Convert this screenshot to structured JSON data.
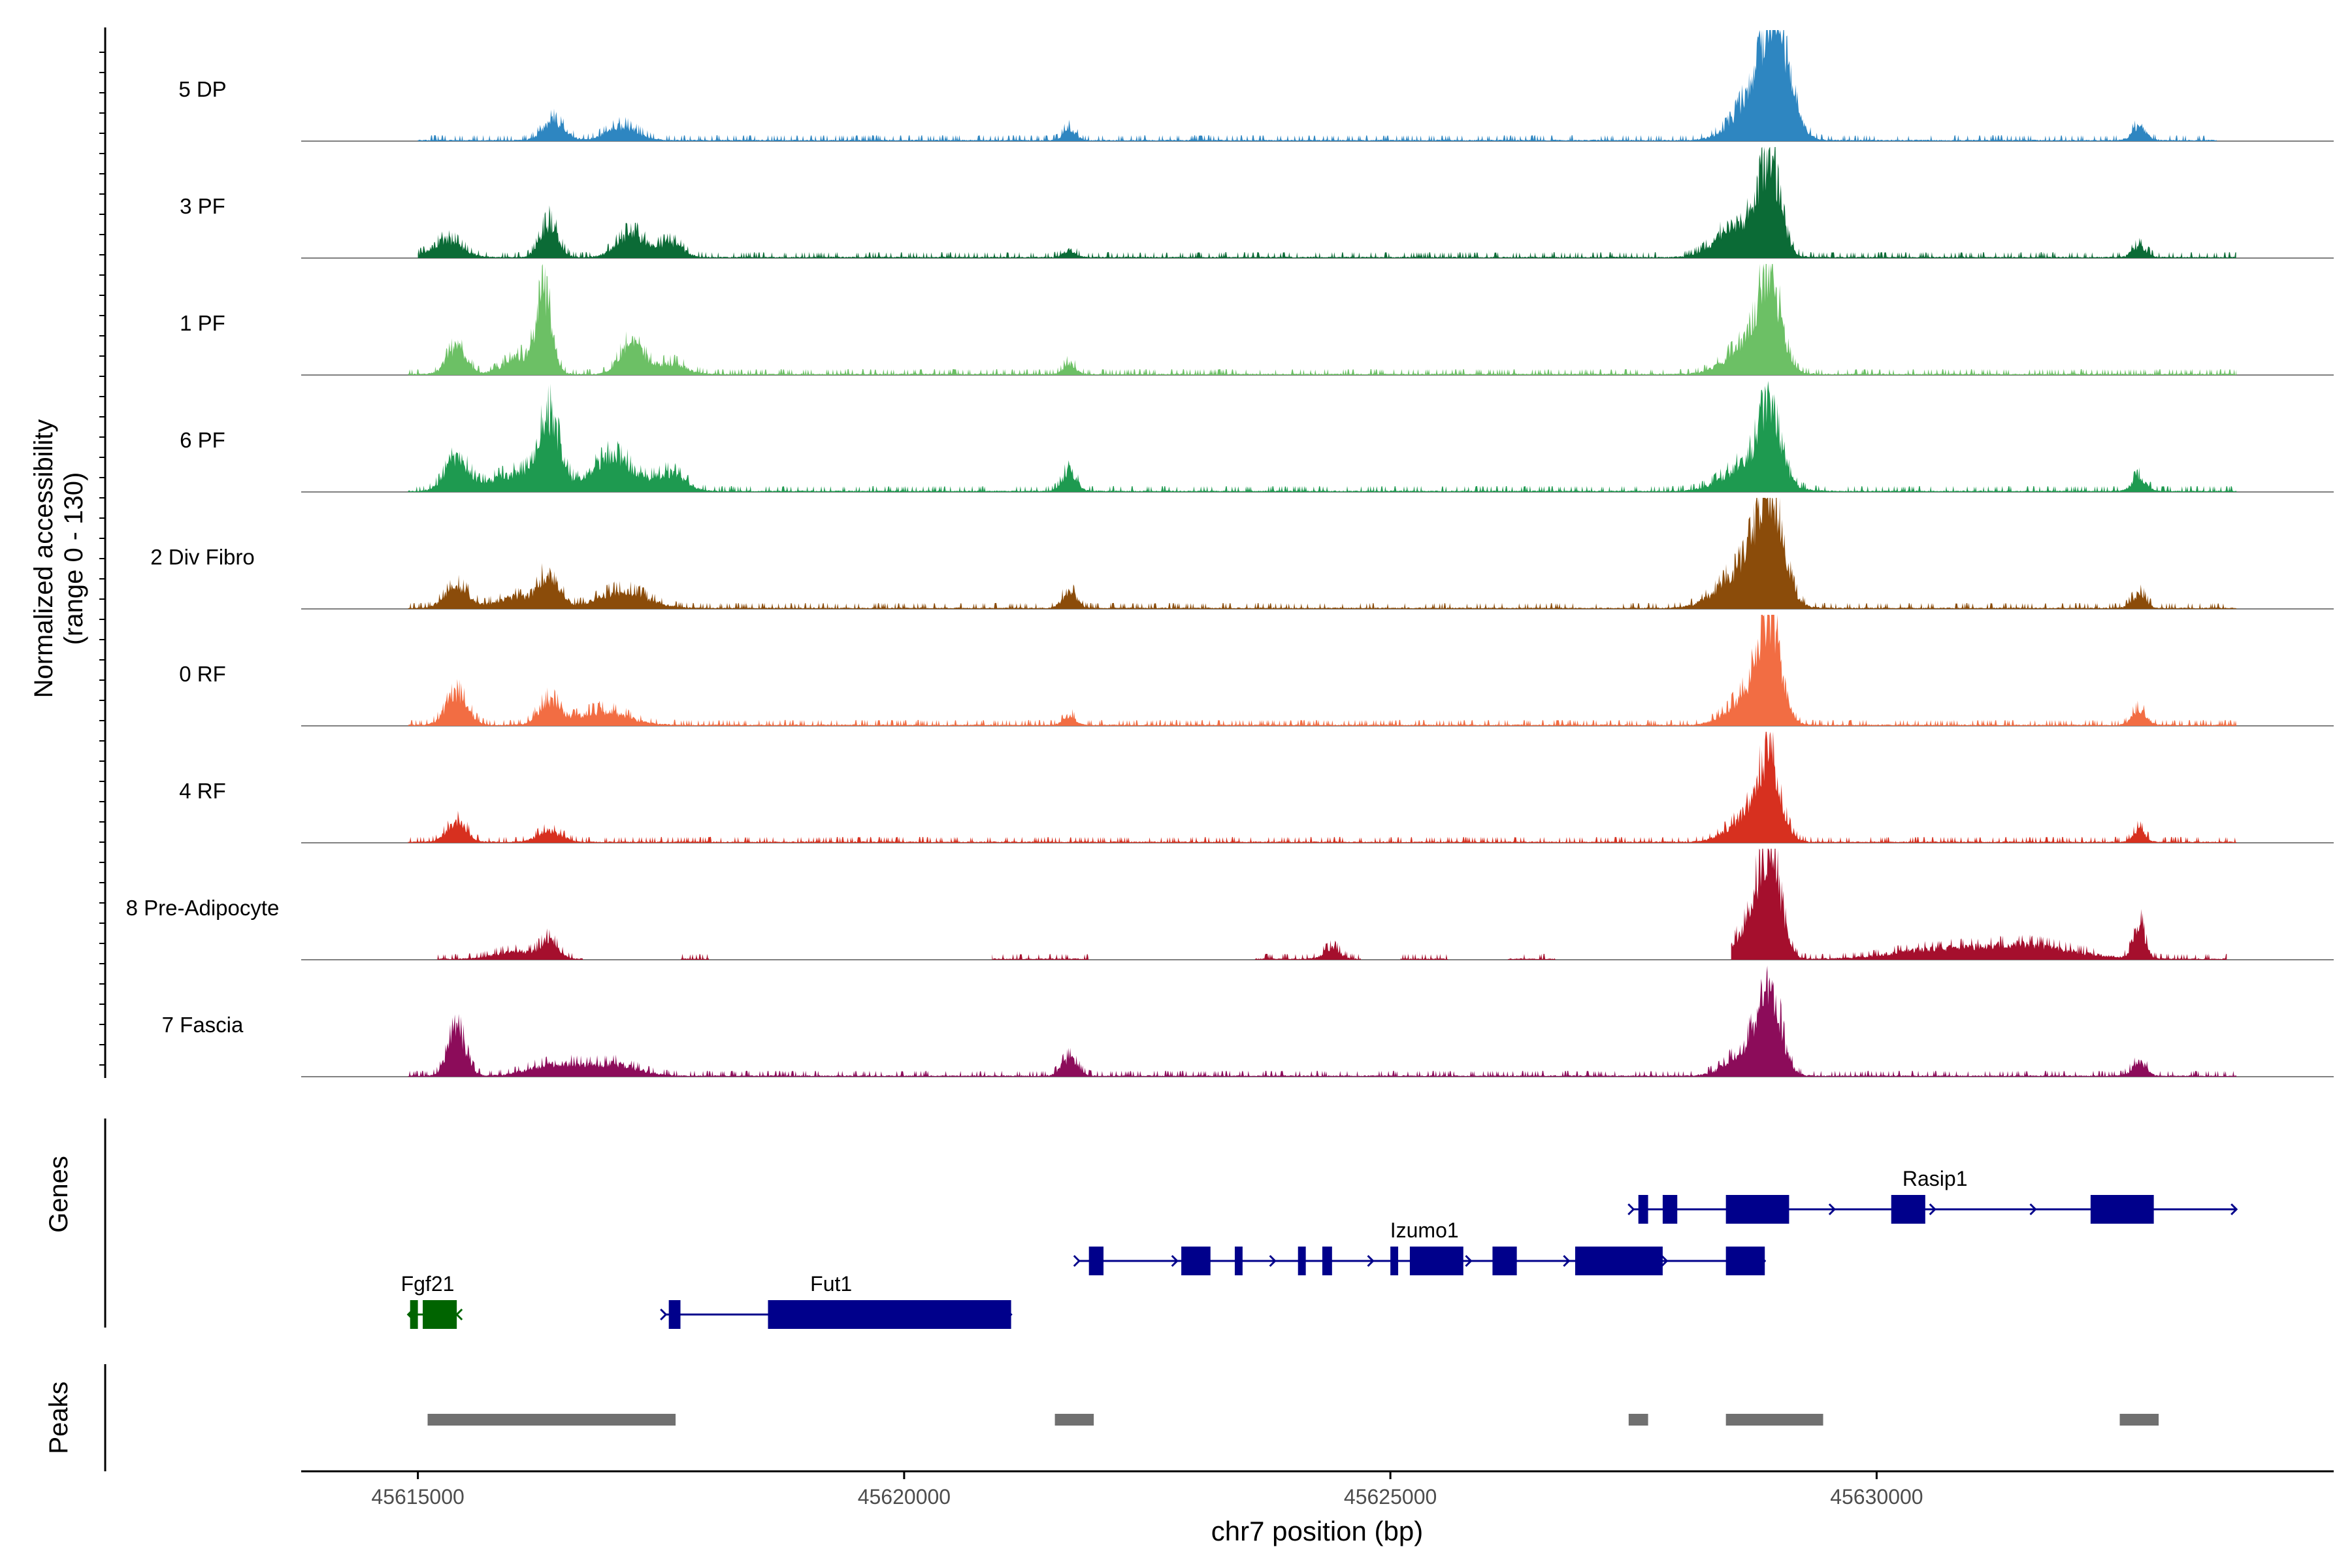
{
  "chart_data": {
    "type": "area",
    "title": "",
    "ylabel_line1": "Normalized accessibility",
    "ylabel_line2": "(range 0 - 130)",
    "yrange": [
      0,
      130
    ],
    "xlabel": "chr7 position (bp)",
    "xlim": [
      45613800,
      45634700
    ],
    "x_ticks": [
      45615000,
      45620000,
      45625000,
      45630000
    ],
    "x_tick_labels": [
      "45615000",
      "45620000",
      "45625000",
      "45630000"
    ],
    "coverage_tracks": [
      {
        "name": "5 DP",
        "color": "#2E86C1",
        "start": 45615000,
        "end": 45633500,
        "peaks": [
          [
            45616400,
            25,
            110
          ],
          [
            45617100,
            18,
            160
          ],
          [
            45621700,
            16,
            60
          ],
          [
            45628950,
            128,
            150
          ],
          [
            45628750,
            45,
            220
          ],
          [
            45632700,
            18,
            70
          ]
        ],
        "gaps": []
      },
      {
        "name": "3 PF",
        "color": "#0B6B36",
        "start": 45615000,
        "end": 45633700,
        "peaks": [
          [
            45615300,
            22,
            150
          ],
          [
            45616350,
            45,
            90
          ],
          [
            45617200,
            30,
            150
          ],
          [
            45617600,
            18,
            120
          ],
          [
            45621700,
            9,
            60
          ],
          [
            45628900,
            105,
            110
          ],
          [
            45628600,
            45,
            220
          ],
          [
            45632700,
            14,
            70
          ]
        ],
        "gaps": []
      },
      {
        "name": "1 PF",
        "color": "#6CC065",
        "start": 45614900,
        "end": 45633700,
        "peaks": [
          [
            45615400,
            35,
            100
          ],
          [
            45616300,
            95,
            80
          ],
          [
            45616050,
            22,
            160
          ],
          [
            45617200,
            40,
            120
          ],
          [
            45617600,
            14,
            150
          ],
          [
            45621700,
            14,
            60
          ],
          [
            45628900,
            105,
            110
          ],
          [
            45628700,
            40,
            220
          ]
        ],
        "gaps": []
      },
      {
        "name": "6 PF",
        "color": "#1E9A50",
        "start": 45614900,
        "end": 45633700,
        "peaks": [
          [
            45615400,
            40,
            120
          ],
          [
            45616350,
            90,
            110
          ],
          [
            45616000,
            22,
            250
          ],
          [
            45617000,
            45,
            220
          ],
          [
            45617600,
            22,
            150
          ],
          [
            45621700,
            26,
            70
          ],
          [
            45628900,
            80,
            110
          ],
          [
            45628700,
            35,
            250
          ],
          [
            45632700,
            18,
            70
          ]
        ],
        "gaps": []
      },
      {
        "name": "2 Div Fibro",
        "color": "#8B4C0A",
        "start": 45614900,
        "end": 45633700,
        "peaks": [
          [
            45615400,
            28,
            120
          ],
          [
            45616350,
            40,
            110
          ],
          [
            45616000,
            14,
            200
          ],
          [
            45617100,
            22,
            250
          ],
          [
            45621700,
            22,
            70
          ],
          [
            45628900,
            130,
            130
          ],
          [
            45628650,
            50,
            250
          ],
          [
            45632700,
            18,
            70
          ]
        ],
        "gaps": []
      },
      {
        "name": "0 RF",
        "color": "#F26D43",
        "start": 45614900,
        "end": 45633700,
        "peaks": [
          [
            45615400,
            40,
            110
          ],
          [
            45616350,
            30,
            110
          ],
          [
            45616900,
            18,
            250
          ],
          [
            45621700,
            12,
            60
          ],
          [
            45628900,
            118,
            110
          ],
          [
            45628700,
            40,
            200
          ],
          [
            45632700,
            20,
            70
          ]
        ],
        "gaps": []
      },
      {
        "name": "4 RF",
        "color": "#D7301F",
        "start": 45614900,
        "end": 45633700,
        "peaks": [
          [
            45615400,
            26,
            100
          ],
          [
            45616350,
            14,
            120
          ],
          [
            45628900,
            90,
            110
          ],
          [
            45628700,
            35,
            200
          ],
          [
            45632700,
            16,
            60
          ]
        ],
        "gaps": []
      },
      {
        "name": "8 Pre-Adipocyte",
        "color": "#A50F2D",
        "start": 45615200,
        "end": 45633600,
        "peaks": [
          [
            45616350,
            22,
            90
          ],
          [
            45616000,
            10,
            200
          ],
          [
            45628900,
            128,
            110
          ],
          [
            45628700,
            40,
            150
          ],
          [
            45632700,
            45,
            60
          ],
          [
            45631500,
            18,
            500
          ],
          [
            45630500,
            10,
            400
          ],
          [
            45624400,
            14,
            80
          ],
          [
            45622200,
            8,
            100
          ]
        ],
        "gaps": [
          [
            45616700,
            45617700
          ],
          [
            45618000,
            45620900
          ],
          [
            45621900,
            45623600
          ],
          [
            45624700,
            45625100
          ],
          [
            45625600,
            45626200
          ],
          [
            45626700,
            45628500
          ]
        ]
      },
      {
        "name": "7 Fascia",
        "color": "#8C0C5A",
        "start": 45614900,
        "end": 45633700,
        "peaks": [
          [
            45615400,
            58,
            90
          ],
          [
            45616400,
            15,
            250
          ],
          [
            45617000,
            15,
            250
          ],
          [
            45621700,
            22,
            80
          ],
          [
            45628900,
            100,
            110
          ],
          [
            45628700,
            35,
            200
          ],
          [
            45632700,
            18,
            70
          ]
        ],
        "gaps": []
      }
    ],
    "genes_track": {
      "label": "Genes",
      "genes": [
        {
          "name": "Fgf21",
          "color": "#006400",
          "strand": "-",
          "start": 45614900,
          "end": 45615400,
          "exons": [
            [
              45614920,
              45615000
            ],
            [
              45615050,
              45615400
            ]
          ]
        },
        {
          "name": "Fut1",
          "color": "#00008B",
          "strand": "+",
          "start": 45617550,
          "end": 45621100,
          "exons": [
            [
              45617580,
              45617700
            ],
            [
              45618600,
              45621100
            ]
          ]
        },
        {
          "name": "Izumo1",
          "color": "#00008B",
          "strand": "+",
          "start": 45621800,
          "end": 45628850,
          "exons": [
            [
              45621900,
              45622050
            ],
            [
              45622850,
              45623150
            ],
            [
              45623400,
              45623480
            ],
            [
              45624050,
              45624130
            ],
            [
              45624300,
              45624400
            ],
            [
              45625000,
              45625080
            ],
            [
              45625200,
              45625750
            ],
            [
              45626050,
              45626300
            ],
            [
              45626900,
              45627800
            ],
            [
              45628450,
              45628850
            ]
          ]
        },
        {
          "name": "Rasip1",
          "color": "#00008B",
          "strand": "+",
          "start": 45627500,
          "end": 45633700,
          "exons": [
            [
              45627550,
              45627650
            ],
            [
              45627800,
              45627950
            ],
            [
              45628450,
              45629100
            ],
            [
              45630150,
              45630500
            ],
            [
              45632200,
              45632850
            ]
          ]
        }
      ]
    },
    "peaks_track": {
      "label": "Peaks",
      "color": "#707070",
      "regions": [
        [
          45615100,
          45617650
        ],
        [
          45621550,
          45621950
        ],
        [
          45627450,
          45627650
        ],
        [
          45628450,
          45629450
        ],
        [
          45632500,
          45632900
        ]
      ]
    }
  }
}
